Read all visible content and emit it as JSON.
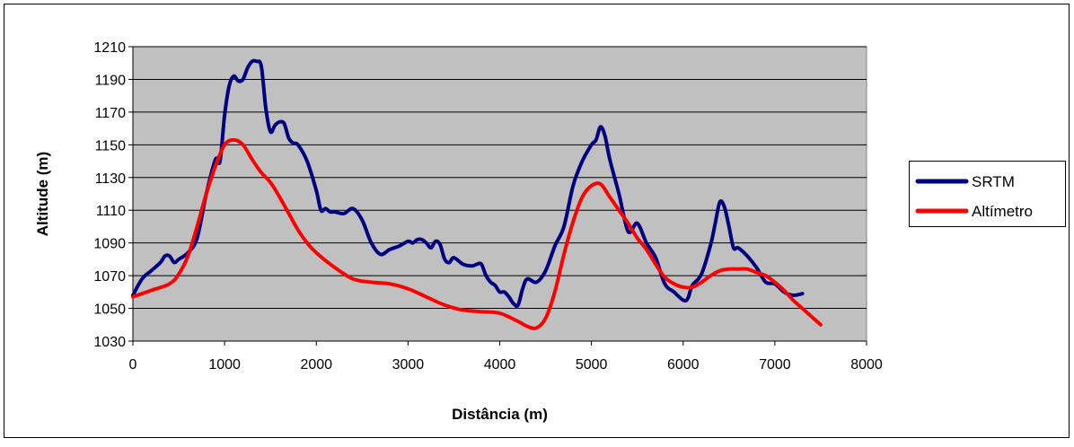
{
  "chart_data": {
    "type": "line",
    "title": "",
    "xlabel": "Distância (m)",
    "ylabel": "Altitude (m)",
    "xlim": [
      0,
      8000
    ],
    "ylim": [
      1030,
      1210
    ],
    "x_ticks": [
      0,
      1000,
      2000,
      3000,
      4000,
      5000,
      6000,
      7000,
      8000
    ],
    "y_ticks": [
      1030,
      1050,
      1070,
      1090,
      1110,
      1130,
      1150,
      1170,
      1190,
      1210
    ],
    "grid": "horizontal",
    "legend_position": "right",
    "plot_background": "#c0c0c0",
    "series": [
      {
        "name": "SRTM",
        "color": "#000080",
        "x": [
          0,
          100,
          200,
          300,
          350,
          400,
          450,
          500,
          600,
          700,
          800,
          900,
          950,
          1000,
          1050,
          1100,
          1150,
          1200,
          1250,
          1300,
          1350,
          1400,
          1450,
          1500,
          1550,
          1600,
          1650,
          1700,
          1750,
          1800,
          1900,
          2000,
          2050,
          2100,
          2150,
          2200,
          2300,
          2400,
          2500,
          2600,
          2700,
          2800,
          2900,
          3000,
          3050,
          3100,
          3150,
          3200,
          3250,
          3300,
          3350,
          3400,
          3450,
          3500,
          3600,
          3700,
          3750,
          3800,
          3850,
          3900,
          3950,
          4000,
          4050,
          4100,
          4150,
          4200,
          4250,
          4300,
          4400,
          4500,
          4600,
          4700,
          4800,
          4900,
          5000,
          5050,
          5100,
          5150,
          5200,
          5300,
          5400,
          5500,
          5600,
          5700,
          5800,
          5900,
          6000,
          6050,
          6100,
          6200,
          6300,
          6350,
          6400,
          6450,
          6500,
          6550,
          6600,
          6700,
          6800,
          6900,
          7000,
          7100,
          7200,
          7300
        ],
        "y": [
          1058,
          1068,
          1073,
          1078,
          1082,
          1082,
          1078,
          1080,
          1084,
          1093,
          1120,
          1141,
          1140,
          1168,
          1186,
          1192,
          1189,
          1190,
          1197,
          1201,
          1201,
          1198,
          1172,
          1158,
          1162,
          1164,
          1163,
          1154,
          1151,
          1150,
          1140,
          1122,
          1110,
          1111,
          1109,
          1109,
          1108,
          1111,
          1104,
          1090,
          1083,
          1086,
          1088,
          1091,
          1090,
          1092,
          1092,
          1090,
          1087,
          1091,
          1089,
          1080,
          1078,
          1081,
          1077,
          1076,
          1077,
          1077,
          1070,
          1066,
          1064,
          1060,
          1060,
          1057,
          1053,
          1052,
          1062,
          1068,
          1066,
          1073,
          1088,
          1100,
          1125,
          1140,
          1150,
          1153,
          1161,
          1155,
          1141,
          1120,
          1097,
          1102,
          1090,
          1081,
          1065,
          1060,
          1055,
          1056,
          1064,
          1071,
          1089,
          1102,
          1115,
          1112,
          1100,
          1087,
          1087,
          1082,
          1075,
          1066,
          1065,
          1060,
          1058,
          1059
        ]
      },
      {
        "name": "Altímetro",
        "color": "#ff0000",
        "x": [
          0,
          200,
          400,
          500,
          600,
          700,
          800,
          900,
          1000,
          1100,
          1200,
          1300,
          1400,
          1500,
          1600,
          1700,
          1800,
          1900,
          2000,
          2200,
          2400,
          2600,
          2800,
          3000,
          3200,
          3400,
          3600,
          3800,
          4000,
          4200,
          4300,
          4400,
          4500,
          4600,
          4700,
          4800,
          4900,
          5000,
          5100,
          5200,
          5300,
          5400,
          5500,
          5600,
          5700,
          5800,
          5900,
          6000,
          6100,
          6200,
          6300,
          6400,
          6500,
          6600,
          6700,
          6800,
          6900,
          7000,
          7100,
          7200,
          7300,
          7400,
          7500
        ],
        "y": [
          1057,
          1061,
          1065,
          1071,
          1082,
          1100,
          1120,
          1137,
          1150,
          1153,
          1150,
          1141,
          1133,
          1127,
          1118,
          1108,
          1098,
          1090,
          1084,
          1075,
          1068,
          1066,
          1065,
          1062,
          1057,
          1052,
          1049,
          1048,
          1047,
          1042,
          1039,
          1038,
          1044,
          1060,
          1083,
          1103,
          1118,
          1125,
          1126,
          1118,
          1110,
          1102,
          1093,
          1086,
          1077,
          1069,
          1065,
          1063,
          1063,
          1066,
          1070,
          1073,
          1074,
          1074,
          1074,
          1072,
          1070,
          1066,
          1061,
          1055,
          1050,
          1045,
          1040
        ]
      }
    ]
  }
}
